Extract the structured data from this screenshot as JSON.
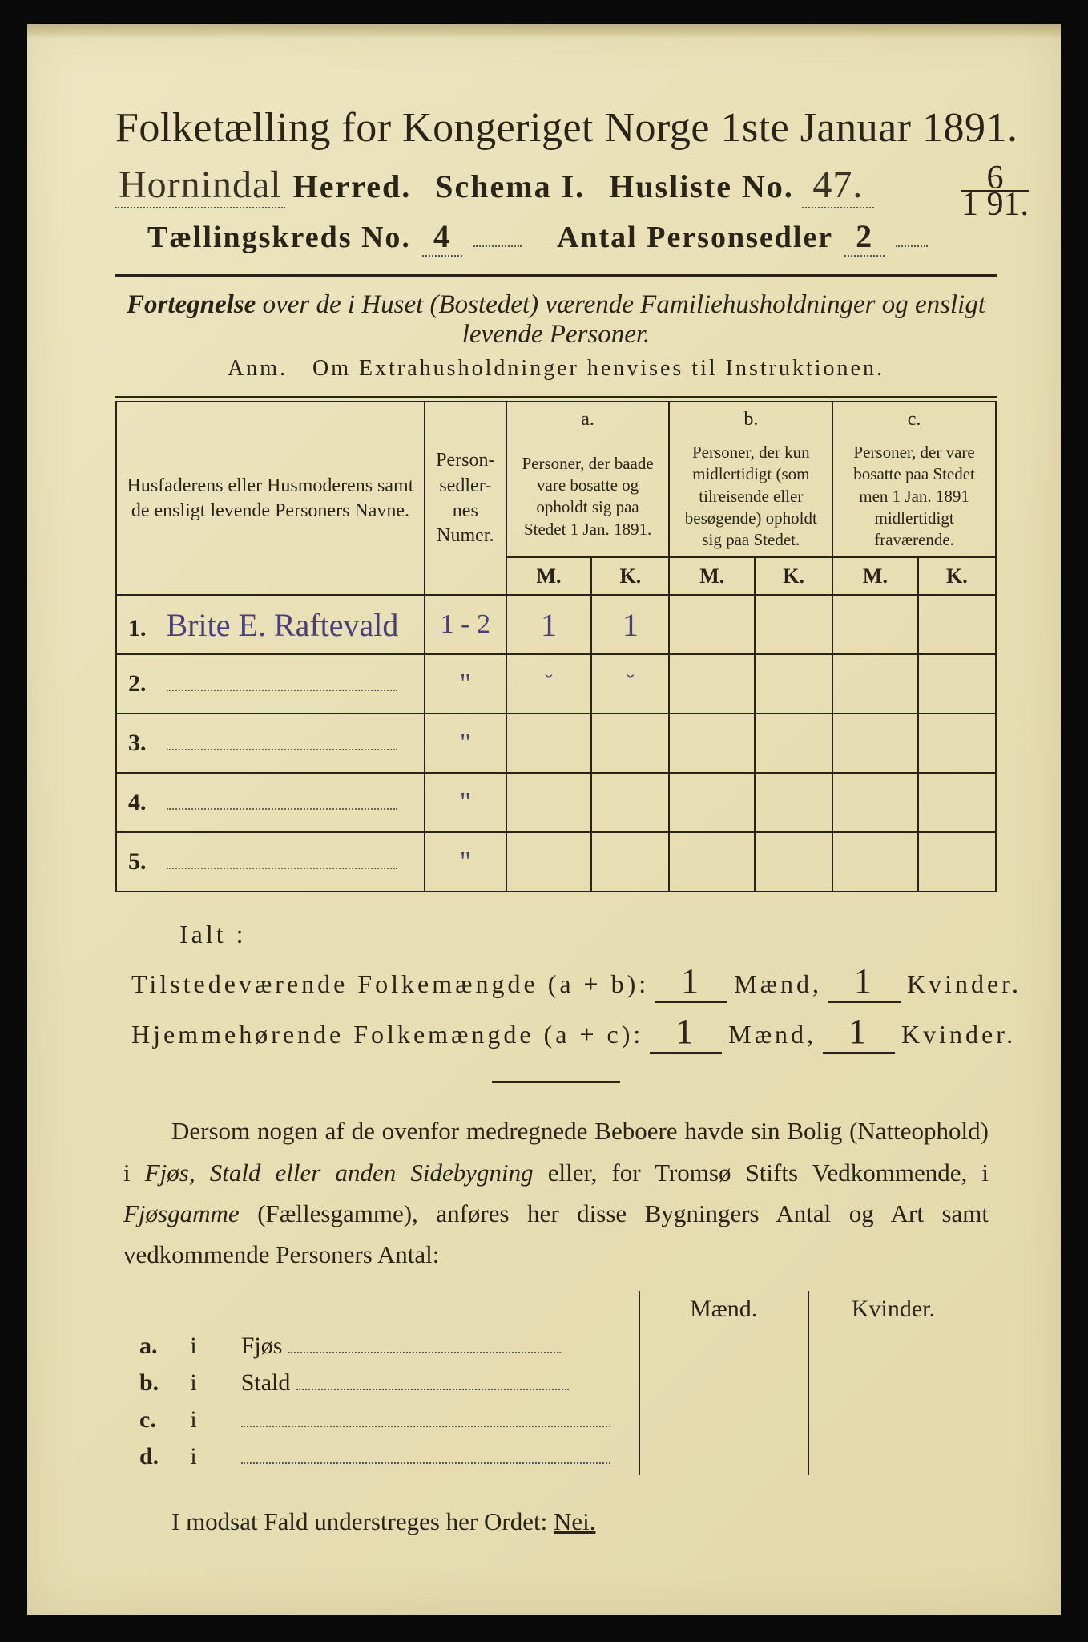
{
  "colors": {
    "paper_bg": "#e8dfb5",
    "ink": "#2a2418",
    "handwriting": "#4a3f7a",
    "frame": "#0a0a0a"
  },
  "header": {
    "title": "Folketælling for Kongeriget Norge 1ste Januar 1891.",
    "herred_hw": "Hornindal",
    "herred_label": "Herred.",
    "schema": "Schema I.",
    "husliste_label": "Husliste No.",
    "husliste_hw": "47.",
    "corner_top": "6",
    "corner_bot": "1 91.",
    "kreds_label": "Tællingskreds No.",
    "kreds_hw": "4",
    "antal_label": "Antal Personsedler",
    "antal_hw": "2"
  },
  "fortegnelse": {
    "line1a": "Fortegnelse",
    "line1b": " over de i Huset (Bostedet) værende Familiehusholdninger og ensligt",
    "line2": "levende Personer.",
    "anm": "Anm. Om Extrahusholdninger henvises til Instruktionen."
  },
  "table": {
    "col_names": "Husfaderens eller Husmoderens samt de ensligt levende Personers Navne.",
    "col_numer": "Person-sedler-nes Numer.",
    "col_a_head": "a.",
    "col_a": "Personer, der baade vare bosatte og opholdt sig paa Stedet 1 Jan. 1891.",
    "col_b_head": "b.",
    "col_b": "Personer, der kun midlertidigt (som tilreisende eller besøgende) opholdt sig paa Stedet.",
    "col_c_head": "c.",
    "col_c": "Personer, der vare bosatte paa Stedet men 1 Jan. 1891 midlertidigt fraværende.",
    "M": "M.",
    "K": "K.",
    "rows": [
      {
        "n": "1.",
        "name_hw": "Brite E. Raftevald",
        "numer_hw": "1 - 2",
        "aM": "1",
        "aK": "1",
        "bM": "",
        "bK": "",
        "cM": "",
        "cK": ""
      },
      {
        "n": "2.",
        "name_hw": "",
        "numer_hw": "\"",
        "aM": "ˇ",
        "aK": "ˇ",
        "bM": "",
        "bK": "",
        "cM": "",
        "cK": ""
      },
      {
        "n": "3.",
        "name_hw": "",
        "numer_hw": "\"",
        "aM": "",
        "aK": "",
        "bM": "",
        "bK": "",
        "cM": "",
        "cK": ""
      },
      {
        "n": "4.",
        "name_hw": "",
        "numer_hw": "\"",
        "aM": "",
        "aK": "",
        "bM": "",
        "bK": "",
        "cM": "",
        "cK": ""
      },
      {
        "n": "5.",
        "name_hw": "",
        "numer_hw": "\"",
        "aM": "",
        "aK": "",
        "bM": "",
        "bK": "",
        "cM": "",
        "cK": ""
      }
    ]
  },
  "totals": {
    "ialt": "Ialt :",
    "line1_label": "Tilstedeværende Folkemængde (a + b):",
    "line2_label": "Hjemmehørende Folkemængde (a + c):",
    "maend": "Mænd,",
    "kvinder": "Kvinder.",
    "l1_m": "1",
    "l1_k": "1",
    "l2_m": "1",
    "l2_k": "1"
  },
  "paragraph": {
    "text1": "Dersom nogen af de ovenfor medregnede Beboere havde sin Bolig (Natteophold) i ",
    "ital1": "Fjøs, Stald eller anden Sidebygning",
    "text2": " eller, for Tromsø Stifts Vedkommende, i ",
    "ital2": "Fjøsgamme",
    "text3": " (Fællesgamme), anføres her disse Bygningers Antal og Art samt vedkommende Personers Antal:"
  },
  "small_table": {
    "maend": "Mænd.",
    "kvinder": "Kvinder.",
    "rows": [
      {
        "k": "a.",
        "i": "i",
        "label": "Fjøs"
      },
      {
        "k": "b.",
        "i": "i",
        "label": "Stald"
      },
      {
        "k": "c.",
        "i": "i",
        "label": ""
      },
      {
        "k": "d.",
        "i": "i",
        "label": ""
      }
    ]
  },
  "footer": {
    "text": "I modsat Fald understreges her Ordet: ",
    "nei": "Nei."
  }
}
